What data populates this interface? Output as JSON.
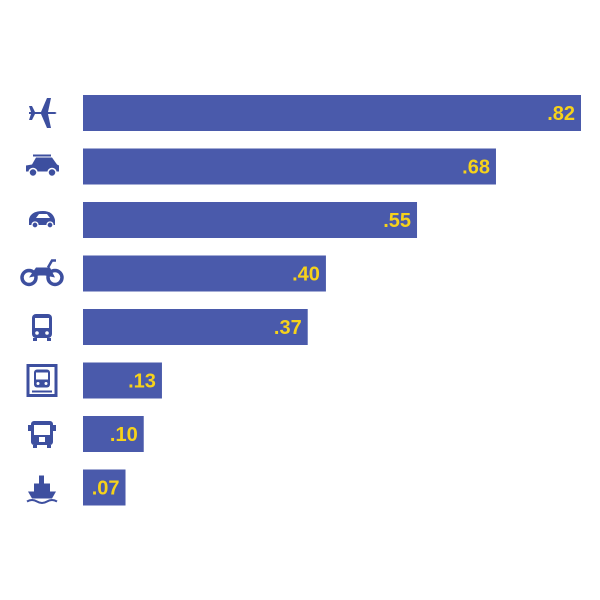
{
  "chart_data": {
    "type": "bar",
    "orientation": "horizontal",
    "categories": [
      "plane-icon",
      "suv-icon",
      "small-car-icon",
      "motorcycle-icon",
      "bus-icon",
      "train-icon",
      "coach-icon",
      "ship-icon"
    ],
    "values": [
      0.82,
      0.68,
      0.55,
      0.4,
      0.37,
      0.13,
      0.1,
      0.07
    ],
    "value_labels": [
      ".82",
      ".68",
      ".55",
      ".40",
      ".37",
      ".13",
      ".10",
      ".07"
    ],
    "title": "",
    "xlabel": "",
    "ylabel": "",
    "xlim": [
      0,
      0.82
    ],
    "grid": false,
    "legend": "none"
  },
  "colors": {
    "bar": "#4a5aab",
    "icon": "#3d4f9f",
    "label": "#f6d21b"
  }
}
